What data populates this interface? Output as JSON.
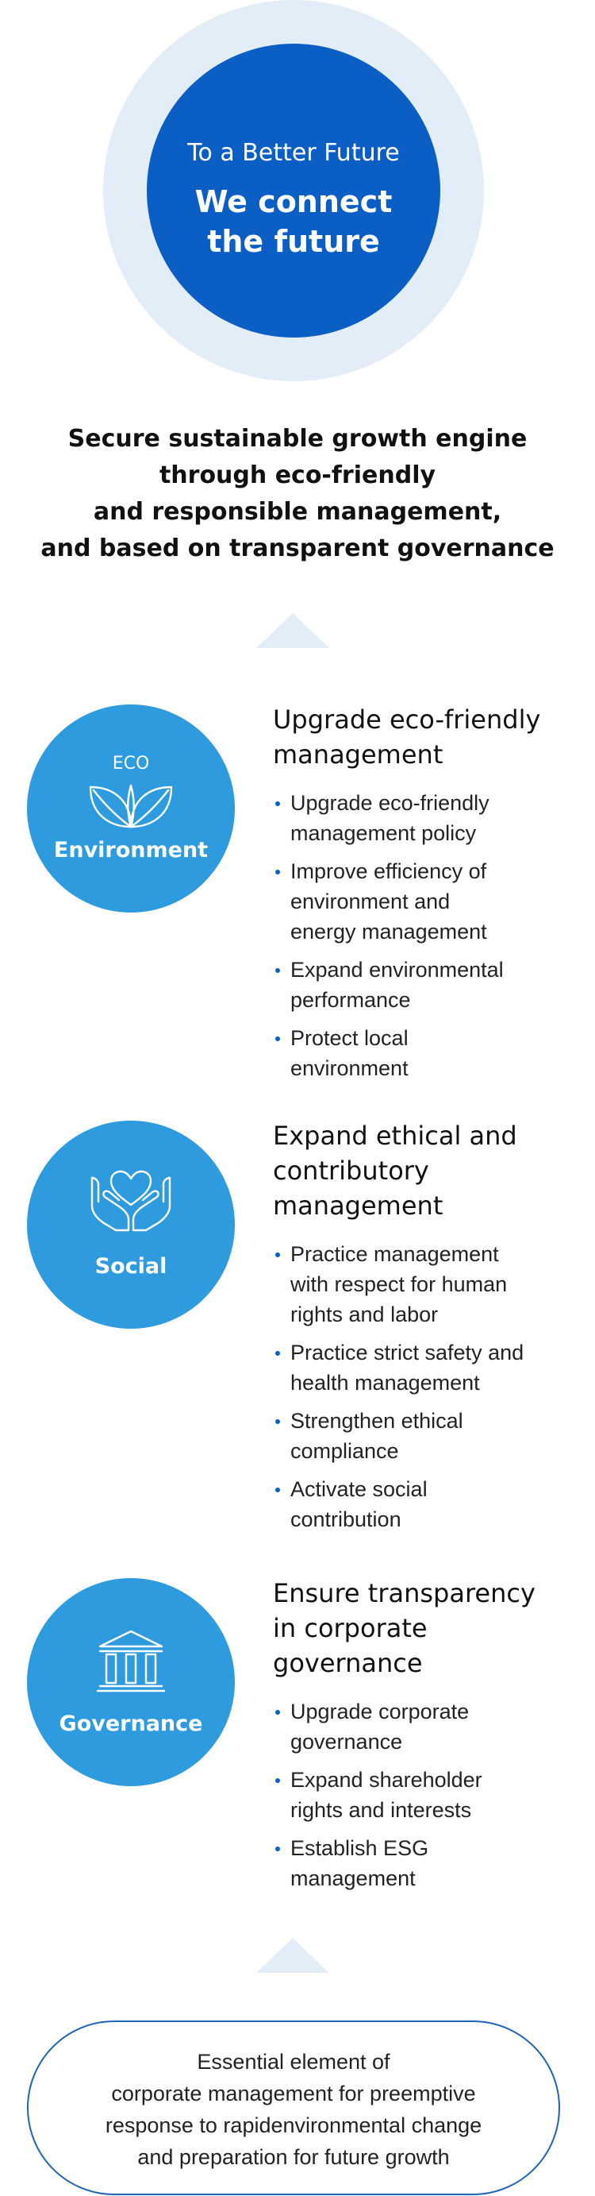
{
  "hero": {
    "subtitle": "To a Better Future",
    "title_lines": [
      "We connect",
      "the future"
    ]
  },
  "headline_lines": [
    "Secure sustainable growth engine",
    "through eco-friendly",
    "and responsible management,",
    "and based on transparent governance"
  ],
  "pillars": [
    {
      "badge": "ECO",
      "label": "Environment",
      "icon": "leaf-icon",
      "heading_lines": [
        "Upgrade eco-friendly",
        "management"
      ],
      "bullets": [
        [
          "Upgrade eco-friendly",
          "management policy"
        ],
        [
          "Improve efficiency of",
          "environment and",
          "energy management"
        ],
        [
          "Expand environmental",
          "performance"
        ],
        [
          "Protect local",
          "environment"
        ]
      ]
    },
    {
      "label": "Social",
      "icon": "hands-heart-icon",
      "heading_lines": [
        "Expand ethical and",
        "contributory",
        "management"
      ],
      "bullets": [
        [
          "Practice management",
          "with respect for human",
          "rights and labor"
        ],
        [
          "Practice strict safety and",
          "health management"
        ],
        [
          "Strengthen ethical",
          "compliance"
        ],
        [
          "Activate social",
          "contribution"
        ]
      ]
    },
    {
      "label": "Governance",
      "icon": "building-columns-icon",
      "heading_lines": [
        "Ensure transparency",
        "in corporate",
        "governance"
      ],
      "bullets": [
        [
          "Upgrade corporate",
          "governance"
        ],
        [
          "Expand shareholder",
          "rights and interests"
        ],
        [
          "Establish ESG",
          "management"
        ]
      ]
    }
  ],
  "footer_lines": [
    "Essential element of",
    "corporate management for preemptive",
    "response to rapidenvironmental change",
    "and preparation for future growth"
  ],
  "colors": {
    "hero_blue": "#0b5ec4",
    "hero_ring": "#e3edf8",
    "pillar_blue": "#2e9bde",
    "bullet_blue": "#0b5ec4",
    "pill_border": "#1f63b8"
  }
}
